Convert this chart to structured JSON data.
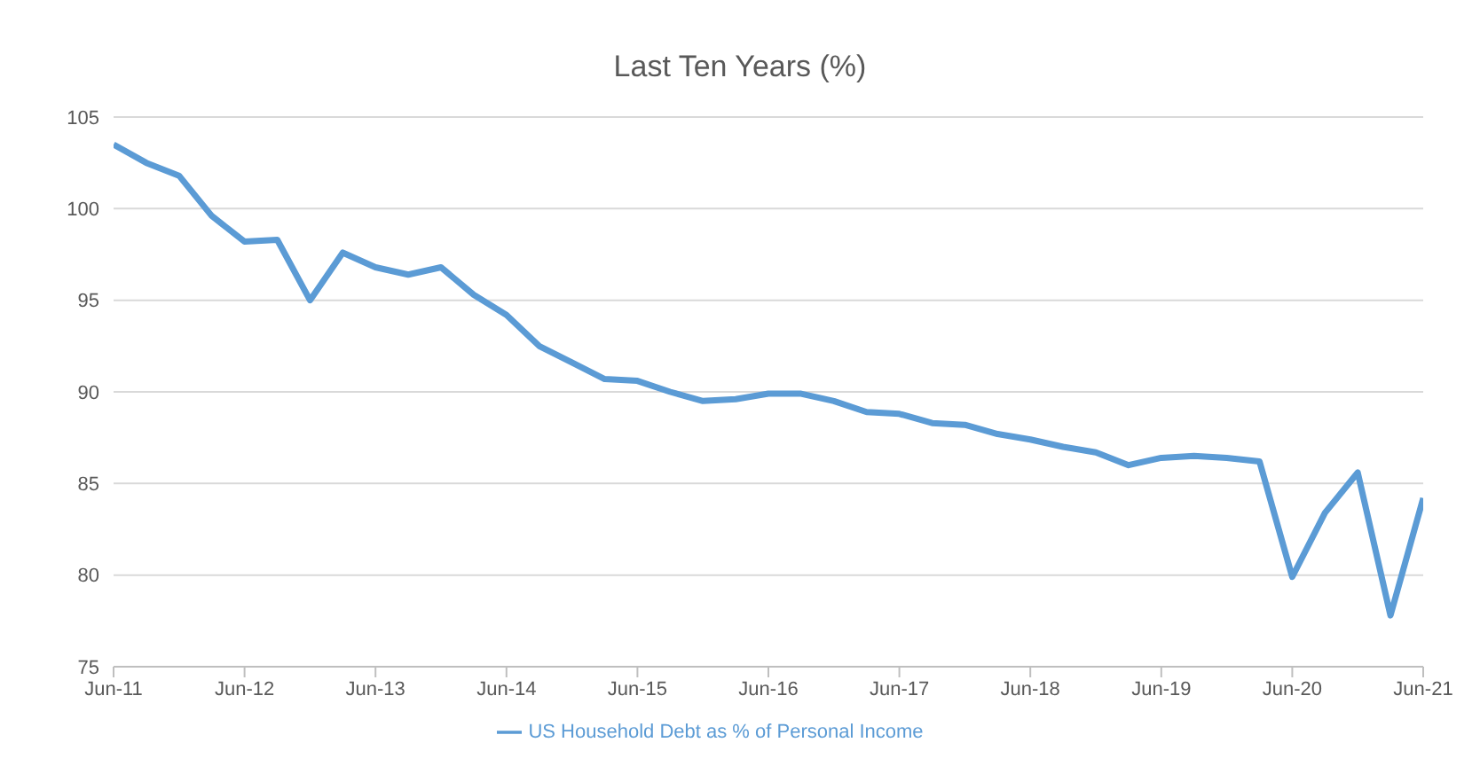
{
  "chart_data": {
    "type": "line",
    "title": "Last Ten Years (%)",
    "categories": [
      "Jun-11",
      null,
      null,
      null,
      "Jun-12",
      null,
      null,
      null,
      "Jun-13",
      null,
      null,
      null,
      "Jun-14",
      null,
      null,
      null,
      "Jun-15",
      null,
      null,
      null,
      "Jun-16",
      null,
      null,
      null,
      "Jun-17",
      null,
      null,
      null,
      "Jun-18",
      null,
      null,
      null,
      "Jun-19",
      null,
      null,
      null,
      "Jun-20",
      null,
      null,
      null,
      "Jun-21"
    ],
    "series": [
      {
        "name": "US Household Debt as % of Personal Income",
        "color": "#5b9bd5",
        "values": [
          103.5,
          102.5,
          101.8,
          99.6,
          98.2,
          98.3,
          95.0,
          97.6,
          96.8,
          96.4,
          96.8,
          95.3,
          94.2,
          92.5,
          91.6,
          90.7,
          90.6,
          90.0,
          89.5,
          89.6,
          89.9,
          89.9,
          89.5,
          88.9,
          88.8,
          88.3,
          88.2,
          87.7,
          87.4,
          87.0,
          86.7,
          86.0,
          86.4,
          86.5,
          86.4,
          86.2,
          79.9,
          83.4,
          85.6,
          77.8,
          84.2
        ]
      }
    ],
    "ylim": [
      75,
      105
    ],
    "yticks": [
      75,
      80,
      85,
      90,
      95,
      100,
      105
    ],
    "grid": "y",
    "legend": "bottom",
    "marker": "none",
    "line_style": "solid"
  }
}
